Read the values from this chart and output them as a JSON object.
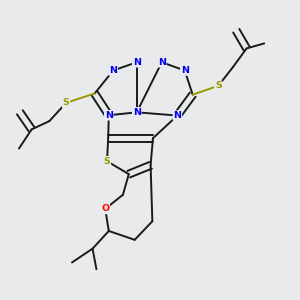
{
  "bg_color": "#e8eaec",
  "atom_colors": {
    "N": "#0000ee",
    "S": "#999900",
    "O": "#ff0000",
    "C": "#1a1a1a"
  },
  "bond_color": "#1a1a1a",
  "bond_width": 1.4,
  "dbo": 0.012
}
